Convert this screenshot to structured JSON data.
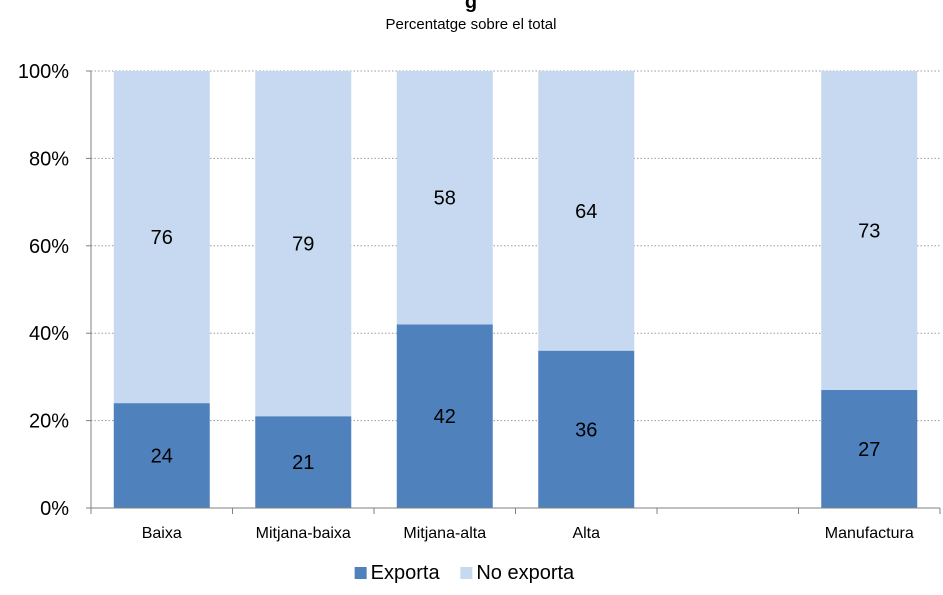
{
  "chart_data": {
    "type": "bar",
    "stacked": true,
    "title_fragment": "g",
    "subtitle": "Percentatge sobre el total",
    "categories": [
      "Baixa",
      "Mitjana-baixa",
      "Mitjana-alta",
      "Alta",
      "",
      "Manufactura"
    ],
    "series": [
      {
        "name": "Exporta",
        "values": [
          24,
          21,
          42,
          36,
          null,
          27
        ]
      },
      {
        "name": "No exporta",
        "values": [
          76,
          79,
          58,
          64,
          null,
          73
        ]
      }
    ],
    "y_ticks": [
      "0%",
      "20%",
      "40%",
      "60%",
      "80%",
      "100%"
    ],
    "ylim": [
      0,
      100
    ],
    "grid": true,
    "legend_position": "bottom",
    "colors": {
      "Exporta": "#4F81BD",
      "No exporta": "#C6D9F1",
      "title": "#1F5FA8",
      "grid": "#9a9a9a",
      "axis": "#808080"
    }
  }
}
